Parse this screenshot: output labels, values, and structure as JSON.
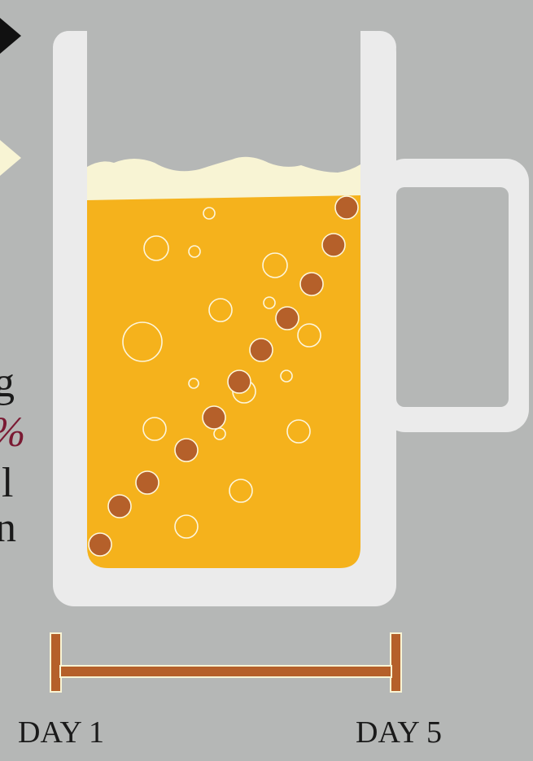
{
  "left_fragments": [
    "g",
    "%",
    "l",
    "n"
  ],
  "scale": {
    "start_label": "DAY 1",
    "end_label": "DAY 5"
  }
}
